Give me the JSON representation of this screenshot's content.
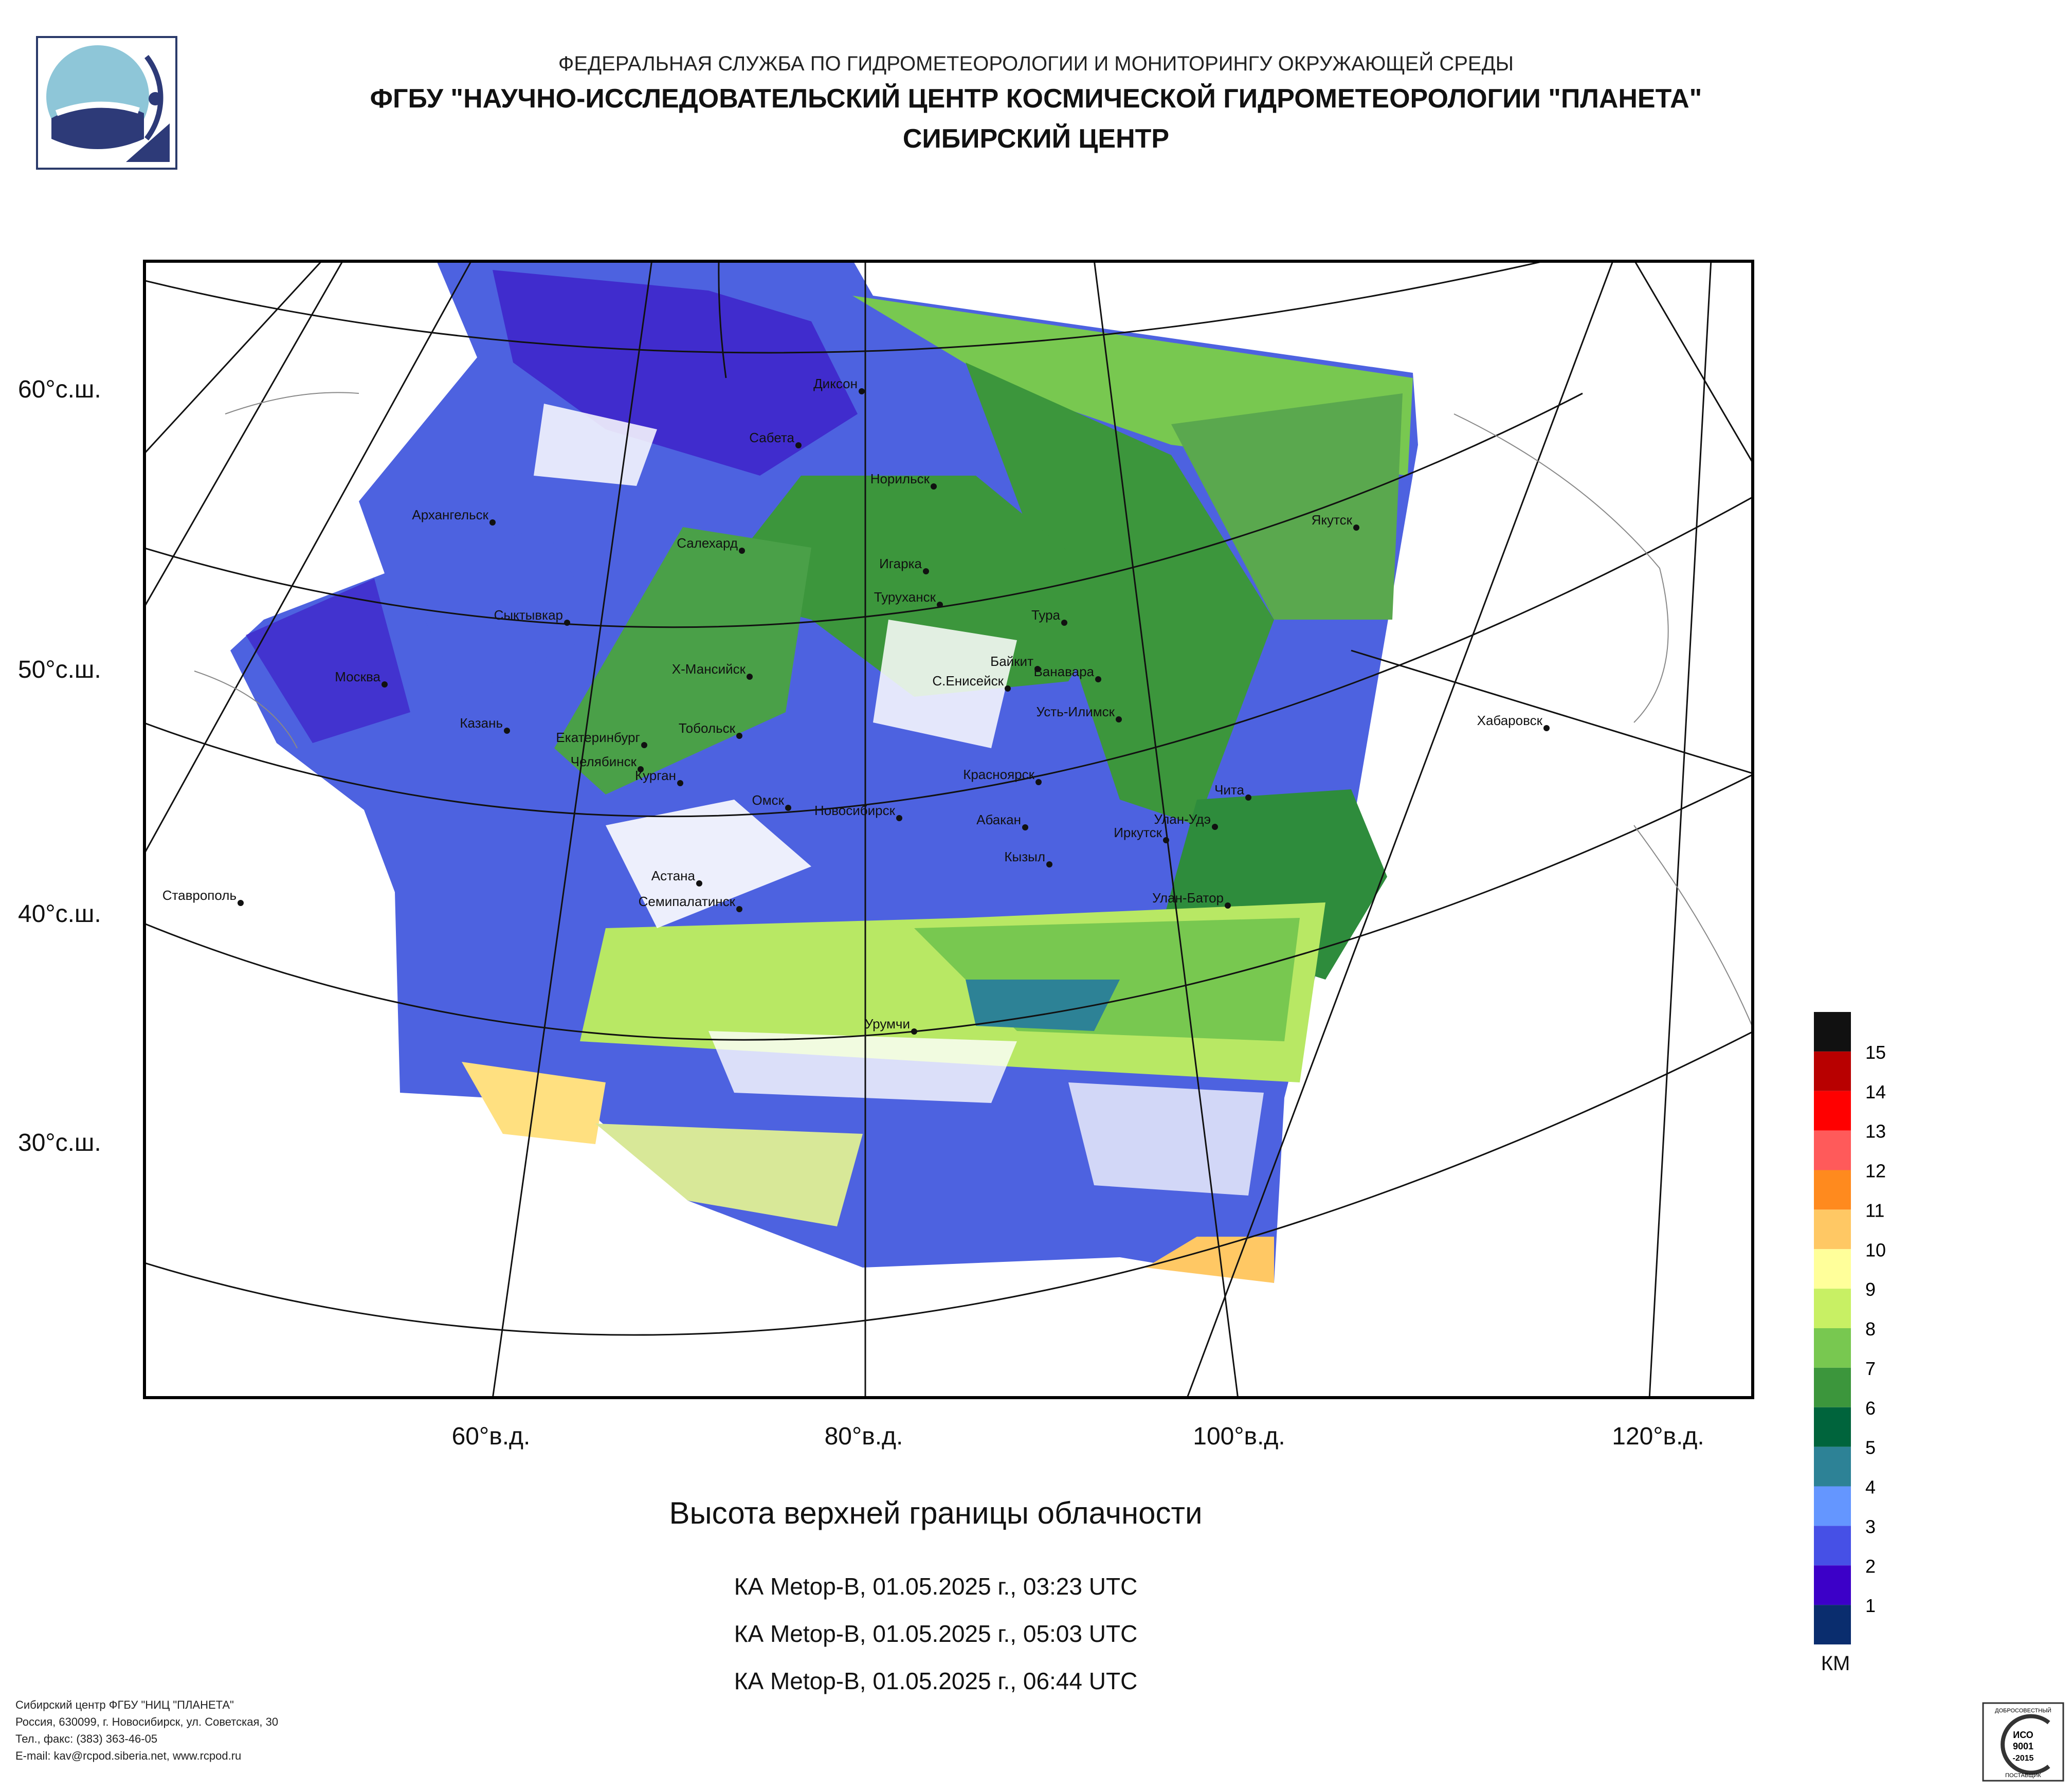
{
  "header": {
    "agency": "ФЕДЕРАЛЬНАЯ СЛУЖБА ПО ГИДРОМЕТЕОРОЛОГИИ И МОНИТОРИНГУ ОКРУЖАЮЩЕЙ СРЕДЫ",
    "institute": "ФГБУ \"НАУЧНО-ИССЛЕДОВАТЕЛЬСКИЙ ЦЕНТР КОСМИЧЕСКОЙ ГИДРОМЕТЕОРОЛОГИИ \"ПЛАНЕТА\"",
    "center": "СИБИРСКИЙ ЦЕНТР"
  },
  "map": {
    "lat_labels": [
      "60°с.ш.",
      "50°с.ш.",
      "40°с.ш.",
      "30°с.ш."
    ],
    "lon_labels": [
      "60°в.д.",
      "80°в.д.",
      "100°в.д.",
      "120°в.д."
    ],
    "cities": [
      "Диксон",
      "Сабета",
      "Норильск",
      "Архангельск",
      "Салехард",
      "Игарка",
      "Туруханск",
      "Тура",
      "Якутск",
      "Сыктывкар",
      "Байкит",
      "Ванавара",
      "Москва",
      "Х-Мансийск",
      "С.Енисейск",
      "Усть-Илимск",
      "Казань",
      "Екатеринбург",
      "Тобольск",
      "Хабаровск",
      "Челябинск",
      "Курган",
      "Красноярск",
      "Омск",
      "Новосибирск",
      "Абакан",
      "Чита",
      "Улан-Удэ",
      "Иркутск",
      "Кызыл",
      "Ставрополь",
      "Астана",
      "Семипалатинск",
      "Улан-Батор",
      "Урумчи"
    ]
  },
  "title": "Высота верхней границы облачности",
  "passes": [
    "КА Metop-B, 01.05.2025 г., 03:23 UTC",
    "КА Metop-B, 01.05.2025 г., 05:03 UTC",
    "КА Metop-B, 01.05.2025 г., 06:44 UTC"
  ],
  "legend": {
    "unit": "КМ",
    "levels": [
      "15",
      "14",
      "13",
      "12",
      "11",
      "10",
      "9",
      "8",
      "7",
      "6",
      "5",
      "4",
      "3",
      "2",
      "1"
    ],
    "colors": [
      "#111111",
      "#b80000",
      "#ff0000",
      "#ff5a5a",
      "#ff8a1e",
      "#ffc864",
      "#ffff9a",
      "#c8f064",
      "#78c850",
      "#3c963c",
      "#00643c",
      "#2d8296",
      "#6496ff",
      "#4650e6",
      "#3c00c8",
      "#0a2d6e"
    ]
  },
  "footer": {
    "line1": "Сибирский центр ФГБУ \"НИЦ \"ПЛАНЕТА\"",
    "line2": "Россия, 630099, г. Новосибирск, ул. Советская, 30",
    "line3": "Тел., факс: (383) 363-46-05",
    "line4": "E-mail: kav@rcpod.siberia.net, www.rcpod.ru"
  },
  "cert": {
    "top": "ДОБРОСОВЕСТНЫЙ",
    "name": "ИСО",
    "code": "9001",
    "year": "-2015",
    "bottom": "ПОСТАВЩИК"
  }
}
